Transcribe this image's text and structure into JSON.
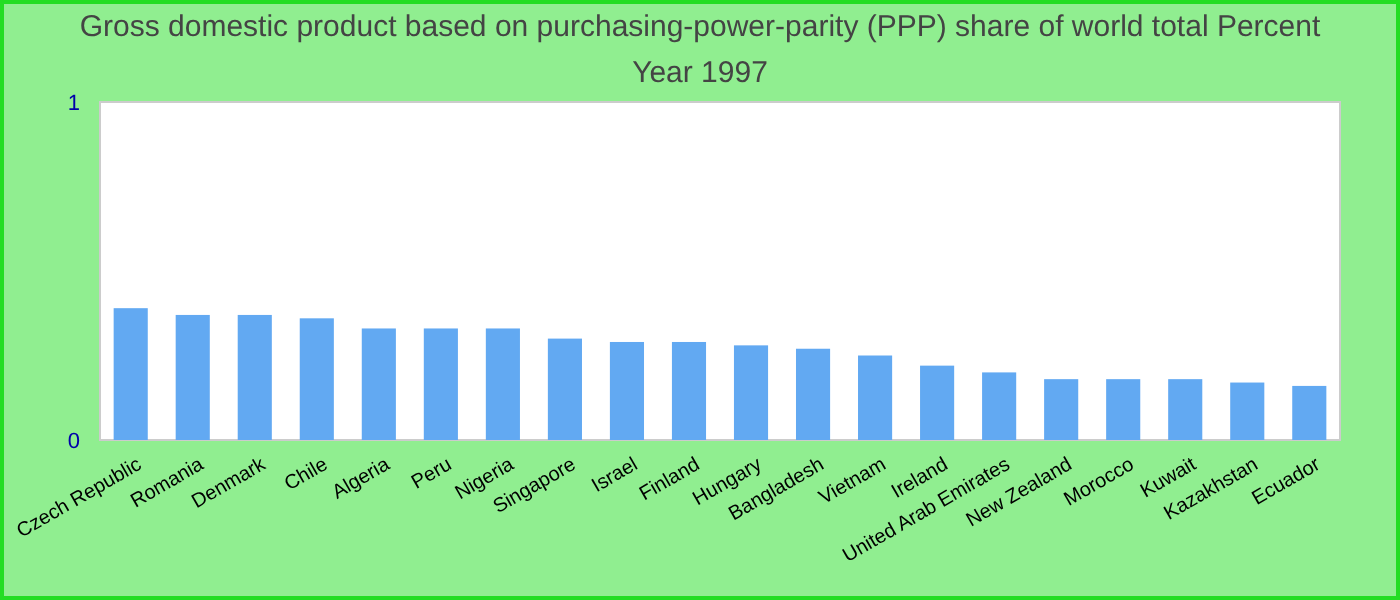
{
  "chart_data": {
    "type": "bar",
    "title": "Gross domestic product based on purchasing-power-parity (PPP) share of world total  Percent",
    "subtitle": "Year 1997",
    "categories": [
      "Czech Republic",
      "Romania",
      "Denmark",
      "Chile",
      "Algeria",
      "Peru",
      "Nigeria",
      "Singapore",
      "Israel",
      "Finland",
      "Hungary",
      "Bangladesh",
      "Vietnam",
      "Ireland",
      "United Arab Emirates",
      "New Zealand",
      "Morocco",
      "Kuwait",
      "Kazakhstan",
      "Ecuador"
    ],
    "values": [
      0.39,
      0.37,
      0.37,
      0.36,
      0.33,
      0.33,
      0.33,
      0.3,
      0.29,
      0.29,
      0.28,
      0.27,
      0.25,
      0.22,
      0.2,
      0.18,
      0.18,
      0.18,
      0.17,
      0.16
    ],
    "color": "#62a9f2",
    "ylim": [
      0,
      1
    ],
    "yticks": [
      0,
      1
    ],
    "grid": false
  }
}
